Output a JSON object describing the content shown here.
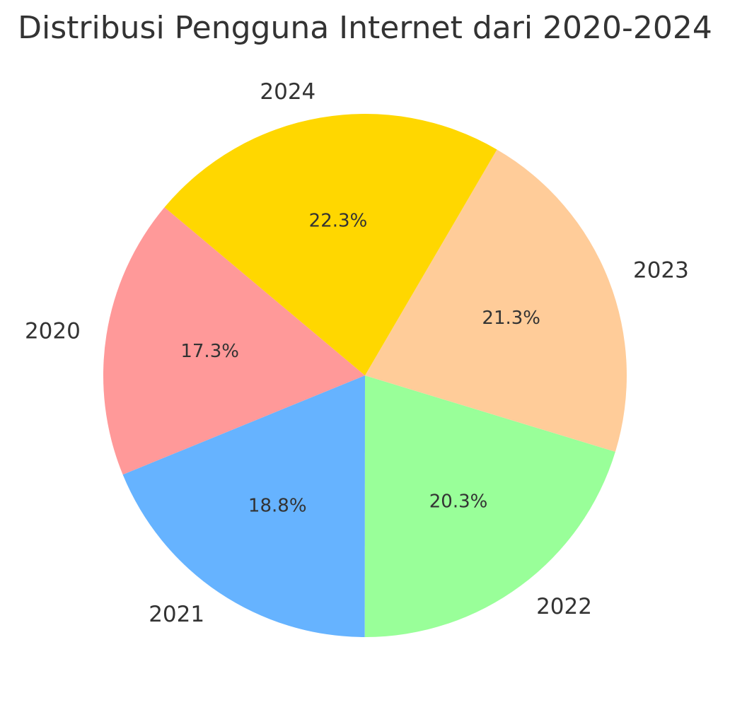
{
  "chart_data": {
    "type": "pie",
    "title": "Distribusi Pengguna Internet dari 2020-2024",
    "categories": [
      "2020",
      "2021",
      "2022",
      "2023",
      "2024"
    ],
    "values": [
      17.3,
      18.8,
      20.3,
      21.3,
      22.3
    ],
    "percent_labels": [
      "17.3%",
      "18.8%",
      "20.3%",
      "21.3%",
      "22.3%"
    ],
    "colors": [
      "#ff9999",
      "#66b3ff",
      "#99ff99",
      "#ffcc99",
      "#ffd700"
    ],
    "start_angle_deg": 140,
    "direction": "counterclockwise",
    "legend": "none"
  }
}
